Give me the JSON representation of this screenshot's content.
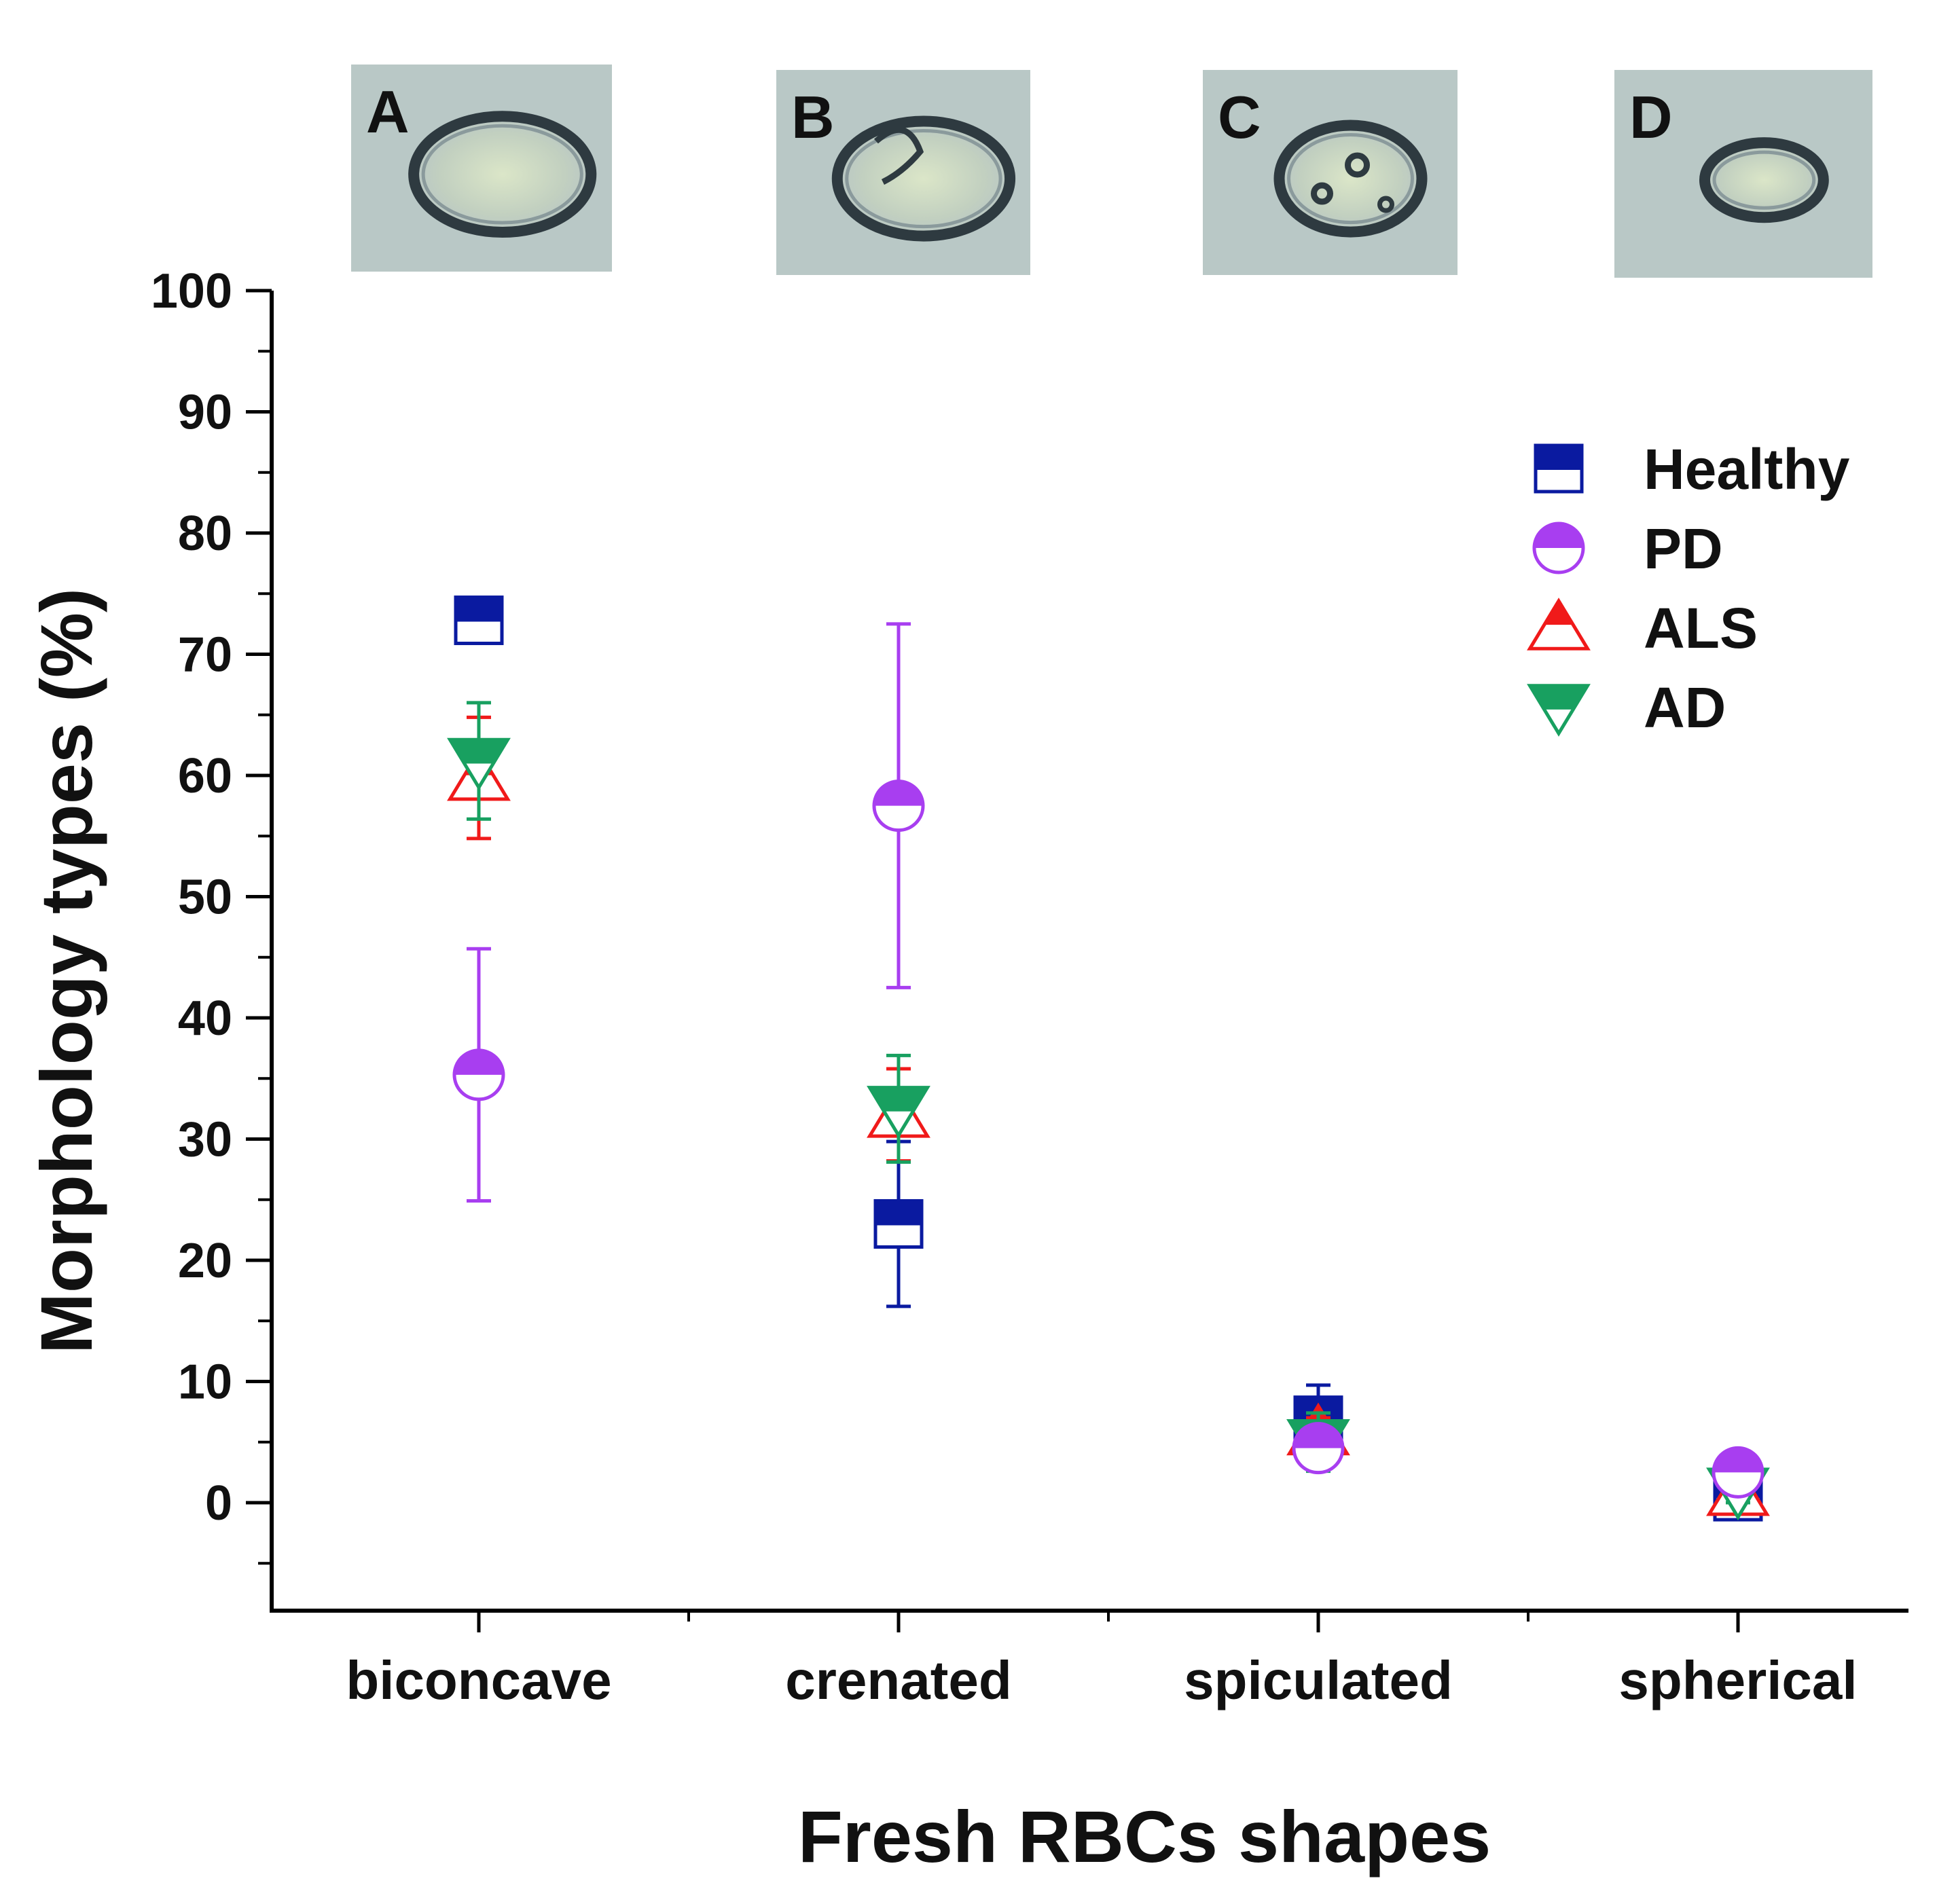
{
  "chart_data": {
    "type": "scatter",
    "title": "",
    "xlabel": "Fresh RBCs shapes",
    "ylabel": "Morphology types (%)",
    "categories": [
      "biconcave",
      "crenated",
      "spiculated",
      "spherical"
    ],
    "ylim": [
      -9,
      100
    ],
    "yticks": [
      0,
      10,
      20,
      30,
      40,
      50,
      60,
      70,
      80,
      90,
      100
    ],
    "legend_position": "top-right",
    "series": [
      {
        "name": "Healthy",
        "marker": "square",
        "color": "#0a1aa0",
        "values": [
          72.8,
          23.0,
          6.8,
          0.5
        ],
        "errors": [
          0.8,
          6.8,
          2.9,
          1.0
        ]
      },
      {
        "name": "PD",
        "marker": "circle",
        "color": "#a83ef0",
        "values": [
          35.3,
          57.5,
          4.5,
          2.5
        ],
        "errors": [
          10.4,
          15.0,
          1.0,
          0.6
        ]
      },
      {
        "name": "ALS",
        "marker": "triangle-up",
        "color": "#f01a1a",
        "values": [
          59.8,
          32.0,
          5.8,
          0.8
        ],
        "errors": [
          5.0,
          3.8,
          1.2,
          0.9
        ]
      },
      {
        "name": "AD",
        "marker": "triangle-down",
        "color": "#18a060",
        "values": [
          61.2,
          32.5,
          5.0,
          1.0
        ],
        "errors": [
          4.8,
          4.4,
          2.4,
          1.0
        ]
      }
    ],
    "insets": [
      {
        "letter": "A",
        "shape": "biconcave"
      },
      {
        "letter": "B",
        "shape": "crenated"
      },
      {
        "letter": "C",
        "shape": "spiculated"
      },
      {
        "letter": "D",
        "shape": "spherical"
      }
    ]
  }
}
